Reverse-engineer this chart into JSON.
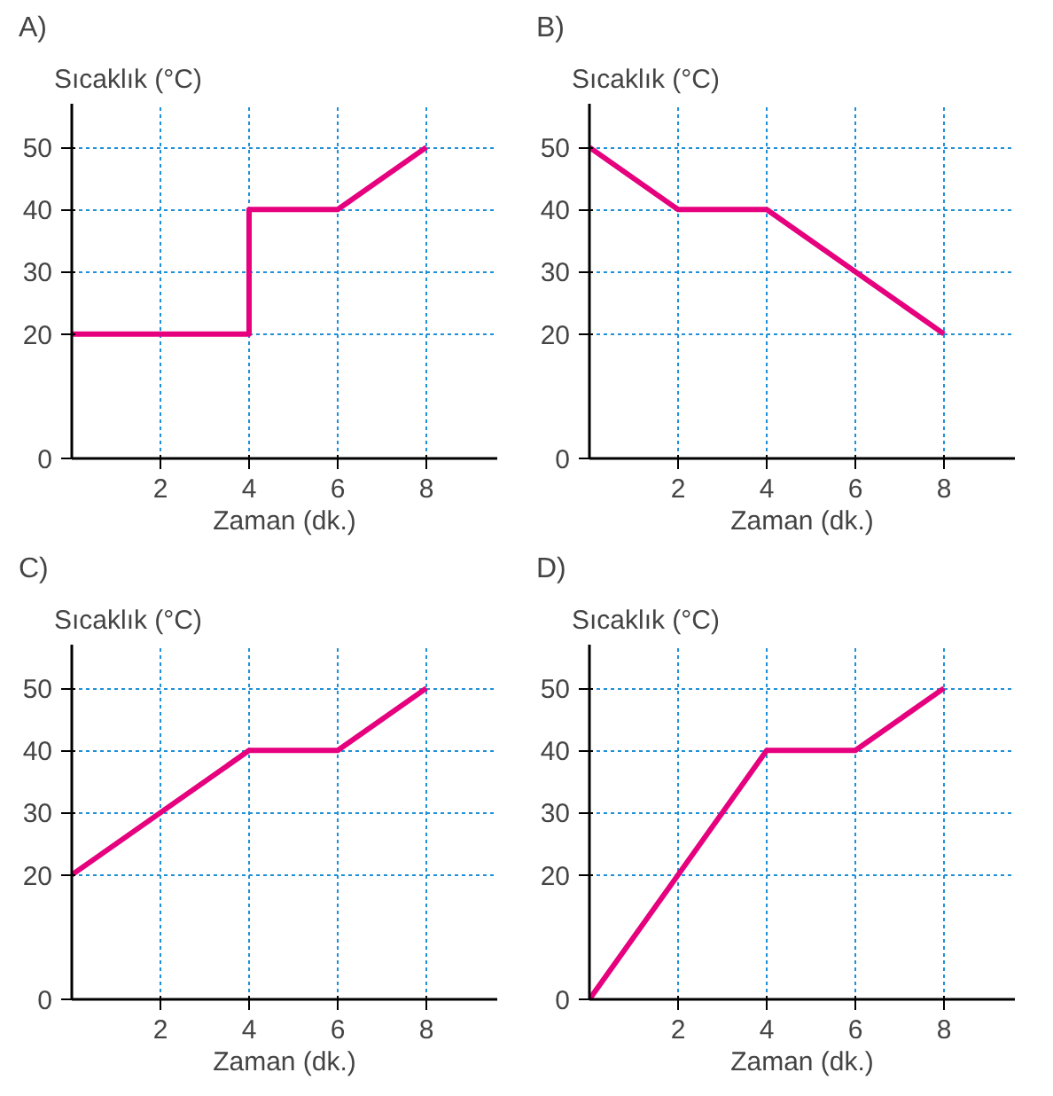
{
  "chart_data": [
    {
      "type": "line",
      "title": "A)",
      "ylabel": "Sıcaklık (°C)",
      "xlabel": "Zaman (dk.)",
      "x": [
        0,
        4,
        4,
        6,
        8
      ],
      "series": [
        {
          "color": "#e6007e",
          "values": [
            20,
            20,
            40,
            40,
            50
          ]
        }
      ],
      "xlim": [
        0,
        9.6
      ],
      "ylim": [
        0,
        57
      ],
      "xticks": [
        2,
        4,
        6,
        8
      ],
      "yticks": [
        0,
        20,
        30,
        40,
        50
      ],
      "grid": true
    },
    {
      "type": "line",
      "title": "B)",
      "ylabel": "Sıcaklık (°C)",
      "xlabel": "Zaman (dk.)",
      "x": [
        0,
        2,
        4,
        8
      ],
      "series": [
        {
          "color": "#e6007e",
          "values": [
            50,
            40,
            40,
            20
          ]
        }
      ],
      "xlim": [
        0,
        9.6
      ],
      "ylim": [
        0,
        57
      ],
      "xticks": [
        2,
        4,
        6,
        8
      ],
      "yticks": [
        0,
        20,
        30,
        40,
        50
      ],
      "grid": true
    },
    {
      "type": "line",
      "title": "C)",
      "ylabel": "Sıcaklık (°C)",
      "xlabel": "Zaman (dk.)",
      "x": [
        0,
        4,
        6,
        8
      ],
      "series": [
        {
          "color": "#e6007e",
          "values": [
            20,
            40,
            40,
            50
          ]
        }
      ],
      "xlim": [
        0,
        9.6
      ],
      "ylim": [
        0,
        57
      ],
      "xticks": [
        2,
        4,
        6,
        8
      ],
      "yticks": [
        0,
        20,
        30,
        40,
        50
      ],
      "grid": true
    },
    {
      "type": "line",
      "title": "D)",
      "ylabel": "Sıcaklık (°C)",
      "xlabel": "Zaman (dk.)",
      "x": [
        0,
        4,
        6,
        8
      ],
      "series": [
        {
          "color": "#e6007e",
          "values": [
            0,
            40,
            40,
            50
          ]
        }
      ],
      "xlim": [
        0,
        9.6
      ],
      "ylim": [
        0,
        57
      ],
      "xticks": [
        2,
        4,
        6,
        8
      ],
      "yticks": [
        0,
        20,
        30,
        40,
        50
      ],
      "grid": true
    }
  ]
}
